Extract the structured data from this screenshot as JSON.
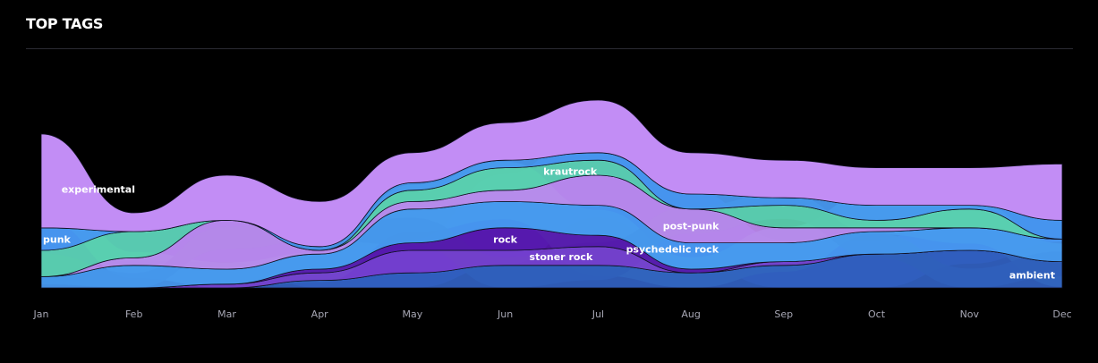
{
  "page_title": "TOP TAGS",
  "chart_data": {
    "type": "area",
    "categories": [
      "Jan",
      "Feb",
      "Mar",
      "Apr",
      "May",
      "Jun",
      "Jul",
      "Aug",
      "Sep",
      "Oct",
      "Nov",
      "Dec"
    ],
    "series": [
      {
        "name": "ambient",
        "color": "#3262c4",
        "values": [
          0,
          0,
          0,
          2,
          4,
          6,
          6,
          4,
          6,
          9,
          10,
          7
        ],
        "label_at": 11
      },
      {
        "name": "stoner rock",
        "color": "#7a3fd5",
        "values": [
          0,
          0,
          1,
          2,
          6,
          4,
          5,
          0,
          1,
          0,
          0,
          0
        ],
        "label_at": 5.6
      },
      {
        "name": "rock",
        "color": "#5b17b3",
        "values": [
          0,
          0,
          0,
          1,
          2,
          6,
          3,
          1,
          0,
          0,
          0,
          0
        ],
        "label_at": 5
      },
      {
        "name": "psychedelic rock",
        "color": "#4a9df8",
        "values": [
          3,
          6,
          4,
          4,
          9,
          7,
          8,
          7,
          5,
          6,
          6,
          6
        ],
        "label_at": 6.8
      },
      {
        "name": "post-punk",
        "color": "#c28df5",
        "values": [
          0,
          2,
          13,
          1,
          2,
          3,
          8,
          9,
          4,
          1,
          0,
          0
        ],
        "label_at": 7
      },
      {
        "name": "krautrock",
        "color": "#5ed6b5",
        "values": [
          7,
          7,
          0,
          0,
          3,
          6,
          4,
          0,
          6,
          2,
          5,
          0
        ],
        "label_at": 5.7
      },
      {
        "name": "punk",
        "color": "#4a9df8",
        "values": [
          6,
          0,
          0,
          1,
          2,
          2,
          2,
          4,
          2,
          4,
          1,
          5
        ],
        "label_at": 0
      },
      {
        "name": "experimental",
        "color": "#c28df5",
        "values": [
          25,
          5,
          12,
          12,
          8,
          10,
          14,
          11,
          10,
          10,
          10,
          15
        ],
        "label_at": 0.2
      }
    ]
  }
}
